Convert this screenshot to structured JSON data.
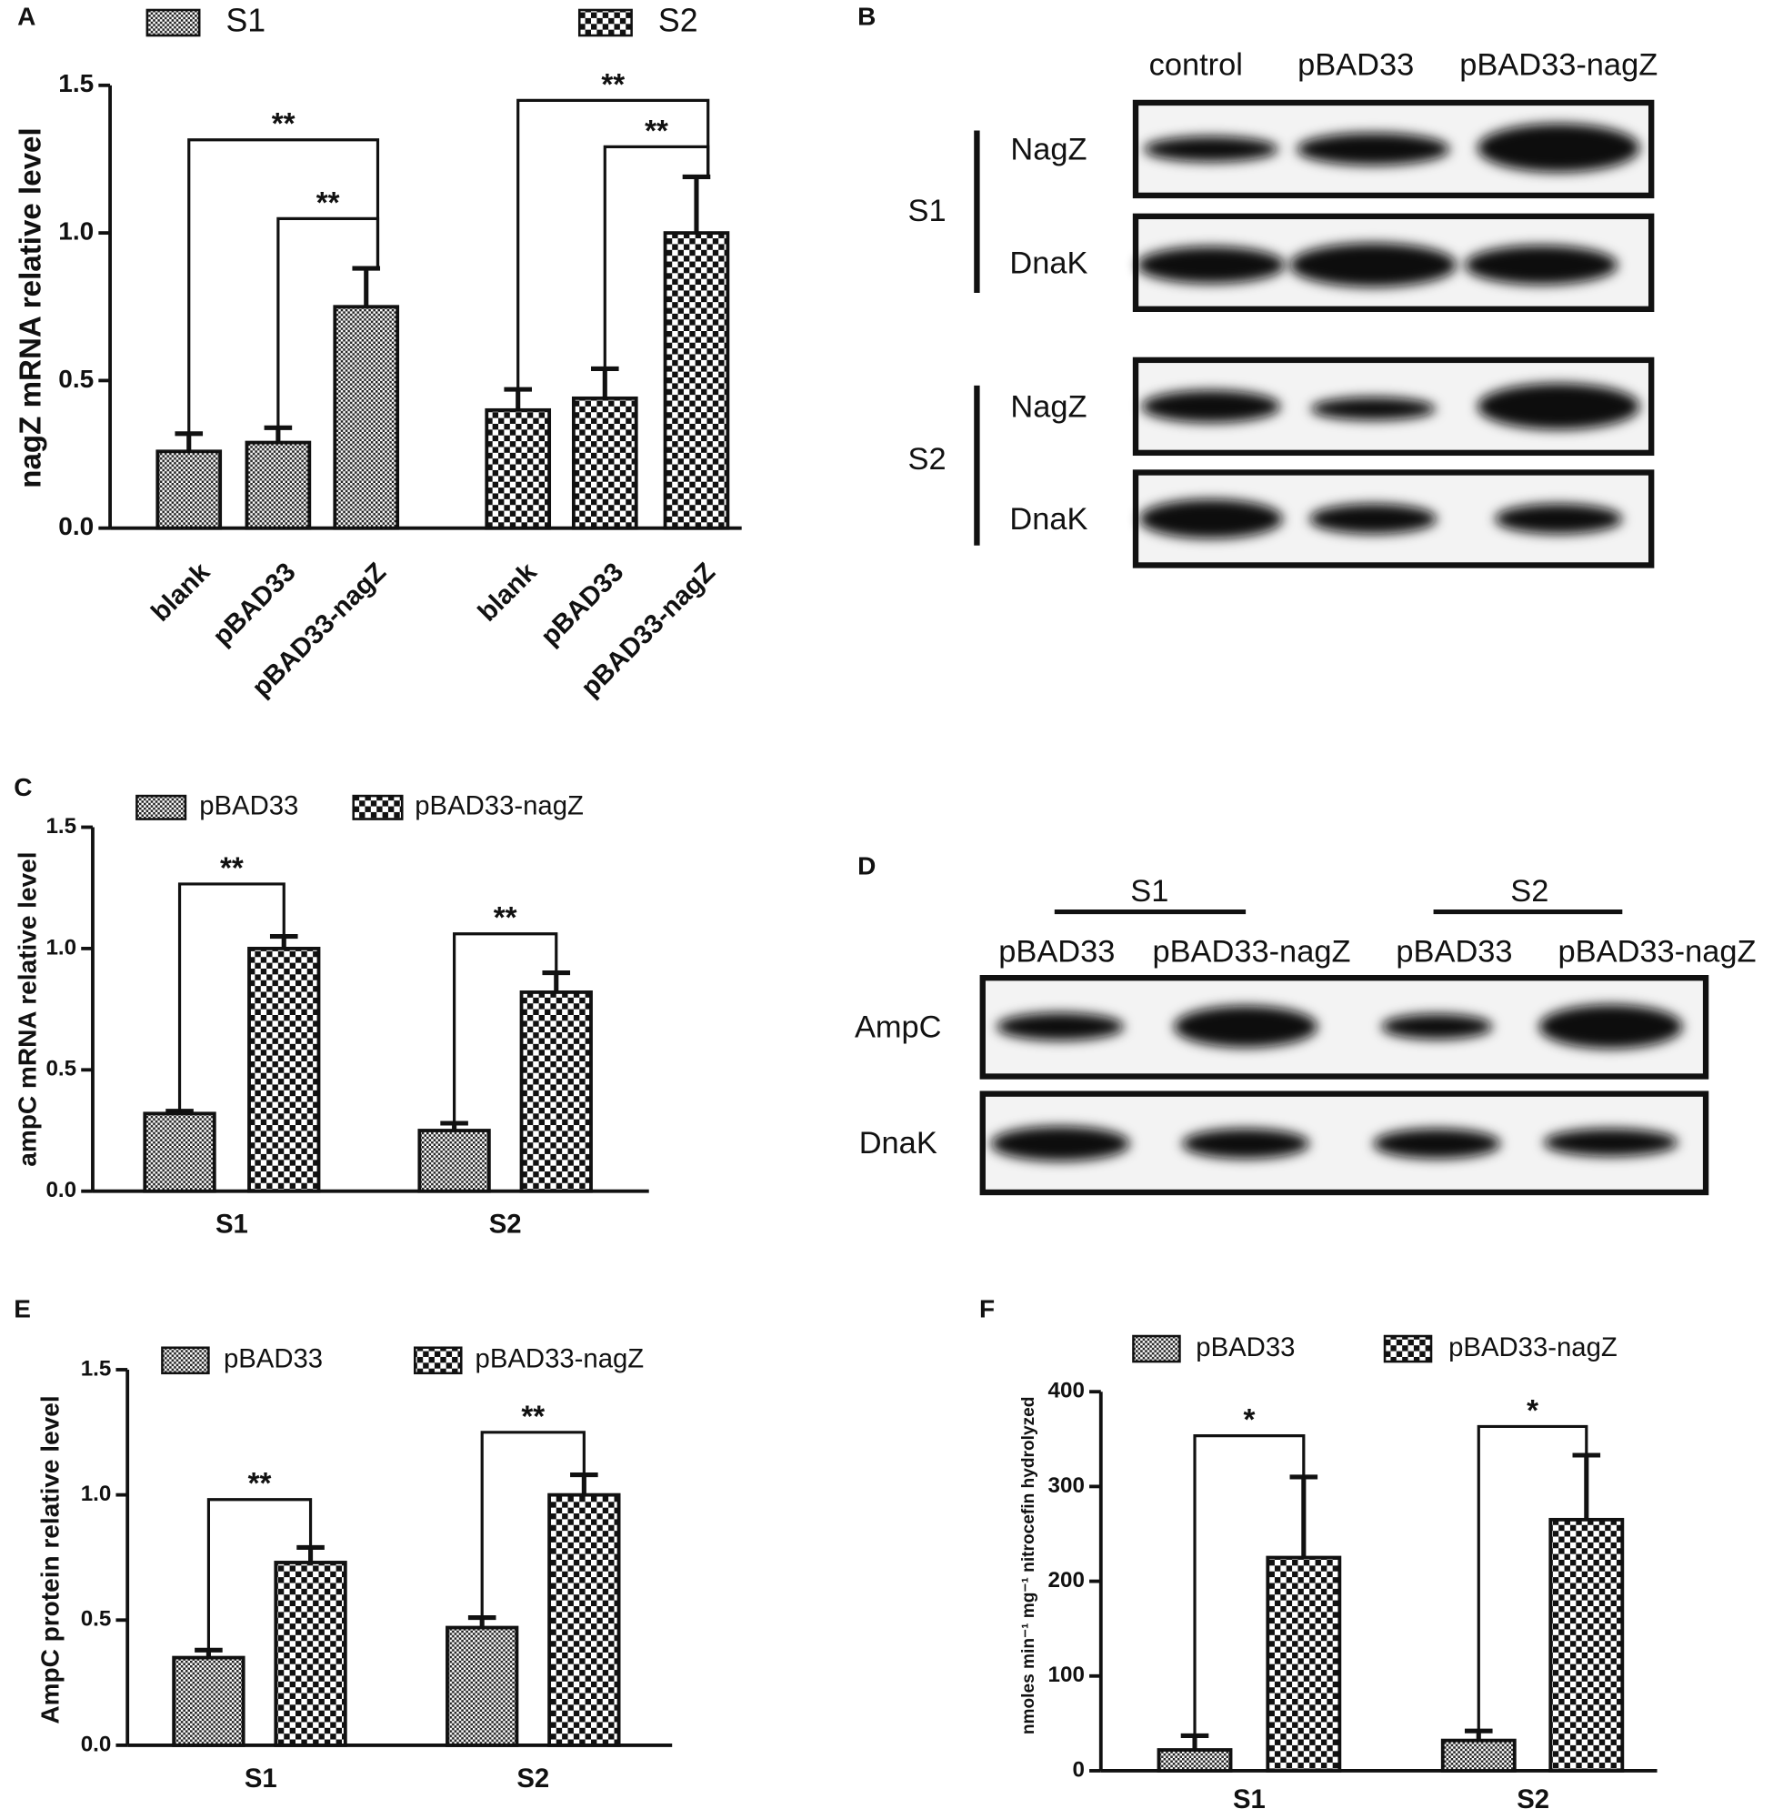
{
  "chart_data": [
    {
      "type": "bar",
      "panel": "A",
      "ylabel": "nagZ mRNA relative level",
      "categories": [
        "blank",
        "pBAD33",
        "pBAD33-nagZ"
      ],
      "series": [
        {
          "name": "S1",
          "pattern": "fine",
          "values": [
            0.26,
            0.29,
            0.75
          ],
          "errors": [
            0.06,
            0.05,
            0.13
          ]
        },
        {
          "name": "S2",
          "pattern": "coarse",
          "values": [
            0.4,
            0.44,
            1.0
          ],
          "errors": [
            0.07,
            0.1,
            0.19
          ]
        }
      ],
      "ylim": [
        0,
        1.5
      ],
      "yticks": [
        {
          "value": 0,
          "label": "0.0"
        },
        {
          "value": 0.5,
          "label": "0.5"
        },
        {
          "value": 1,
          "label": "1.0"
        },
        {
          "value": 1.5,
          "label": "1.5"
        }
      ],
      "annotations": [
        "**",
        "**",
        "**",
        "**"
      ]
    },
    {
      "type": "bar",
      "panel": "C",
      "ylabel": "ampC mRNA relative level",
      "categories": [
        "S1",
        "S2"
      ],
      "series": [
        {
          "name": "pBAD33",
          "pattern": "fine",
          "values": [
            0.32,
            0.25
          ],
          "errors": [
            0.01,
            0.03
          ]
        },
        {
          "name": "pBAD33-nagZ",
          "pattern": "coarse",
          "values": [
            1.0,
            0.82
          ],
          "errors": [
            0.05,
            0.08
          ]
        }
      ],
      "ylim": [
        0,
        1.5
      ],
      "yticks": [
        {
          "value": 0,
          "label": "0.0"
        },
        {
          "value": 0.5,
          "label": "0.5"
        },
        {
          "value": 1,
          "label": "1.0"
        },
        {
          "value": 1.5,
          "label": "1.5"
        }
      ],
      "annotations": [
        "**",
        "**"
      ]
    },
    {
      "type": "bar",
      "panel": "E",
      "ylabel": "AmpC protein relative level",
      "categories": [
        "S1",
        "S2"
      ],
      "series": [
        {
          "name": "pBAD33",
          "pattern": "fine",
          "values": [
            0.35,
            0.47
          ],
          "errors": [
            0.03,
            0.04
          ]
        },
        {
          "name": "pBAD33-nagZ",
          "pattern": "coarse",
          "values": [
            0.73,
            1.0
          ],
          "errors": [
            0.06,
            0.08
          ]
        }
      ],
      "ylim": [
        0,
        1.5
      ],
      "yticks": [
        {
          "value": 0,
          "label": "0.0"
        },
        {
          "value": 0.5,
          "label": "0.5"
        },
        {
          "value": 1,
          "label": "1.0"
        },
        {
          "value": 1.5,
          "label": "1.5"
        }
      ],
      "annotations": [
        "**",
        "**"
      ]
    },
    {
      "type": "bar",
      "panel": "F",
      "ylabel": "nmoles min⁻¹ mg⁻¹ nitrocefin hydrolyzed",
      "categories": [
        "S1",
        "S2"
      ],
      "series": [
        {
          "name": "pBAD33",
          "pattern": "fine",
          "values": [
            22,
            32
          ],
          "errors": [
            15,
            10
          ]
        },
        {
          "name": "pBAD33-nagZ",
          "pattern": "coarse",
          "values": [
            225,
            265
          ],
          "errors": [
            85,
            68
          ]
        }
      ],
      "ylim": [
        0,
        400
      ],
      "yticks": [
        0,
        100,
        200,
        300,
        400
      ],
      "annotations": [
        "*",
        "*"
      ]
    }
  ],
  "blots": [
    {
      "panel": "B",
      "columns": [
        "control",
        "pBAD33",
        "pBAD33-nagZ"
      ],
      "groups": [
        "S1",
        "S2"
      ],
      "rows": [
        "NagZ",
        "DnaK"
      ]
    },
    {
      "panel": "D",
      "columns": [
        "pBAD33",
        "pBAD33-nagZ",
        "pBAD33",
        "pBAD33-nagZ"
      ],
      "groups": [
        "S1",
        "S2"
      ],
      "rows": [
        "AmpC",
        "DnaK"
      ]
    }
  ]
}
